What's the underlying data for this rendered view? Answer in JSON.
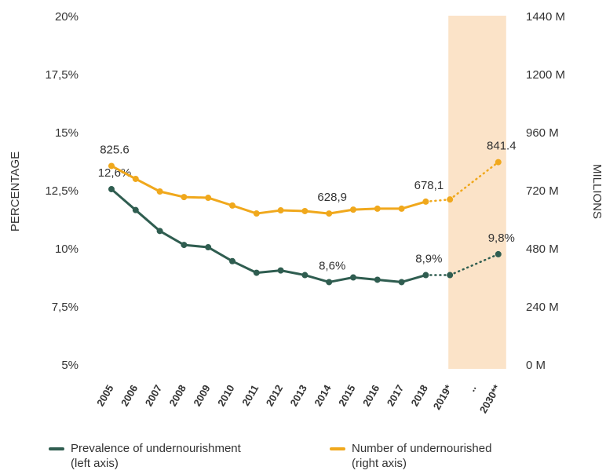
{
  "chart_data": {
    "type": "line",
    "categories": [
      "2005",
      "2006",
      "2007",
      "2008",
      "2009",
      "2010",
      "2011",
      "2012",
      "2013",
      "2014",
      "2015",
      "2016",
      "2017",
      "2018",
      "2019*",
      "..",
      "2030**"
    ],
    "y_label": "PERCENTAGE",
    "y2_label": "MILLIONS",
    "ylim": [
      5,
      20
    ],
    "yticks": [
      {
        "value": 20,
        "label": "20%"
      },
      {
        "value": 17.5,
        "label": "17,5%"
      },
      {
        "value": 15,
        "label": "15%"
      },
      {
        "value": 12.5,
        "label": "12,5%"
      },
      {
        "value": 10,
        "label": "10%"
      },
      {
        "value": 7.5,
        "label": "7,5%"
      },
      {
        "value": 5,
        "label": "5%"
      }
    ],
    "y2lim": [
      0,
      1440
    ],
    "y2ticks": [
      {
        "value": 1440,
        "label": "1440 M"
      },
      {
        "value": 1200,
        "label": "1200 M"
      },
      {
        "value": 960,
        "label": "960 M"
      },
      {
        "value": 720,
        "label": "720 M"
      },
      {
        "value": 480,
        "label": "480 M"
      },
      {
        "value": 240,
        "label": "240 M"
      },
      {
        "value": 0,
        "label": "0 M"
      }
    ],
    "series": [
      {
        "name": "Prevalence of undernourishment (left axis)",
        "color": "#2f5d50",
        "values": [
          12.6,
          11.7,
          10.8,
          10.2,
          10.1,
          9.5,
          9.0,
          9.1,
          8.9,
          8.6,
          8.8,
          8.7,
          8.6,
          8.9,
          8.9,
          null,
          9.8
        ],
        "value_labels": [
          "12,6%",
          null,
          null,
          null,
          null,
          null,
          null,
          null,
          null,
          "8,6%",
          null,
          null,
          null,
          "8,9%",
          null,
          null,
          "9,8%"
        ]
      },
      {
        "name": "Number of undernourished (right axis)",
        "color": "#f0a81c",
        "axis": "y2",
        "values": [
          825.6,
          772,
          720,
          697,
          694,
          662,
          629,
          642,
          639,
          628.9,
          645,
          649,
          649,
          678.1,
          687,
          null,
          841.4
        ],
        "value_labels": [
          "825.6",
          null,
          null,
          null,
          null,
          null,
          null,
          null,
          null,
          "628,9",
          null,
          null,
          null,
          "678,1",
          null,
          null,
          "841.4"
        ]
      }
    ]
  }
}
